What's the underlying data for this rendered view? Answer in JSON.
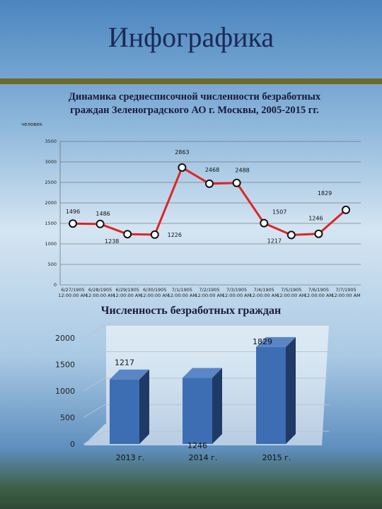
{
  "title": "Инфографика",
  "chart_data": [
    {
      "type": "line",
      "title": "Динамика среднесписочной численности безработных граждан Зеленоградского АО г. Москвы, 2005-2015 гг.",
      "y_label": "человек",
      "categories": [
        "6/27/1905 12:00:00 AM",
        "6/28/1905 12:00:00 AM",
        "6/29/1905 12:00:00 AM",
        "6/30/1905 12:00:00 AM",
        "7/1/1905 12:00:00 AM",
        "7/2/1905 12:00:00 AM",
        "7/3/1905 12:00:00 AM",
        "7/4/1905 12:00:00 AM",
        "7/5/1905 12:00:00 AM",
        "7/6/1905 12:00:00 AM",
        "7/7/1905 12:00:00 AM"
      ],
      "values": [
        1496,
        1486,
        1238,
        1226,
        2863,
        2468,
        2488,
        1507,
        1217,
        1246,
        1829
      ],
      "color": "#e02424",
      "ylim": [
        0,
        3500
      ],
      "yticks": [
        0,
        500,
        1000,
        1500,
        2000,
        2500,
        3000,
        3500
      ],
      "grid": true
    },
    {
      "type": "bar3d",
      "title": "Численность безработных граждан",
      "categories": [
        "2013 г.",
        "2014 г.",
        "2015 г."
      ],
      "values": [
        1217,
        1246,
        1829
      ],
      "color": "#3d6eb4",
      "ylim": [
        0,
        2000
      ],
      "yticks": [
        0,
        500,
        1000,
        1500,
        2000
      ],
      "grid": true
    }
  ]
}
